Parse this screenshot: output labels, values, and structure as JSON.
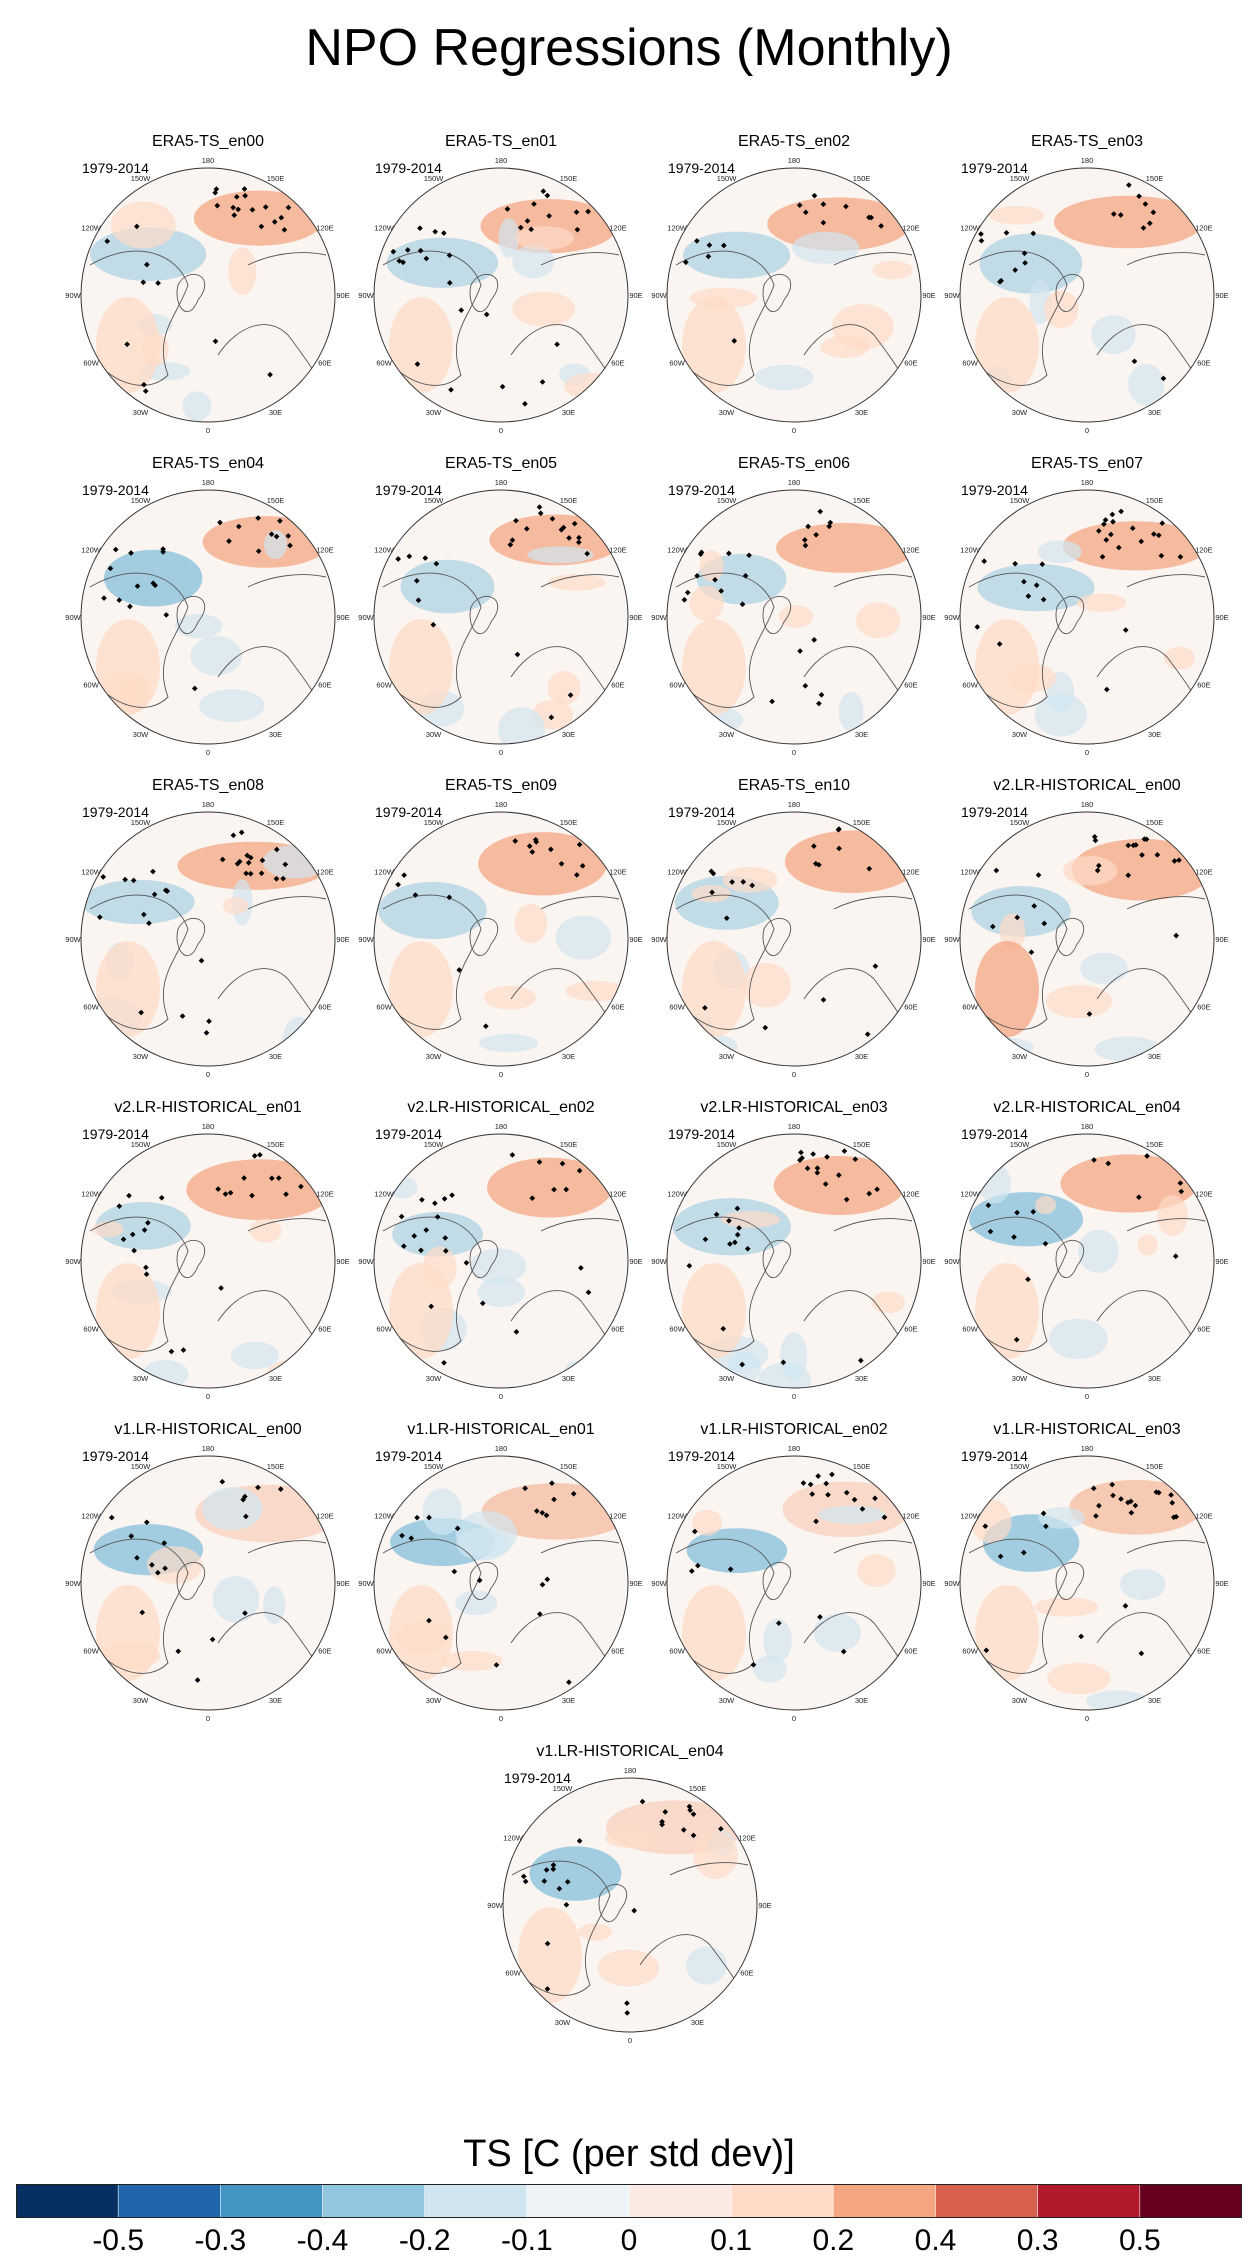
{
  "title": "NPO Regressions (Monthly)",
  "chart_data": {
    "type": "heatmap",
    "projection": "north polar stereographic",
    "variable": "TS",
    "period_label": "1979-2014",
    "panels": [
      {
        "name": "ERA5-TS_en00",
        "period": "1979-2014"
      },
      {
        "name": "ERA5-TS_en01",
        "period": "1979-2014"
      },
      {
        "name": "ERA5-TS_en02",
        "period": "1979-2014"
      },
      {
        "name": "ERA5-TS_en03",
        "period": "1979-2014"
      },
      {
        "name": "ERA5-TS_en04",
        "period": "1979-2014"
      },
      {
        "name": "ERA5-TS_en05",
        "period": "1979-2014"
      },
      {
        "name": "ERA5-TS_en06",
        "period": "1979-2014"
      },
      {
        "name": "ERA5-TS_en07",
        "period": "1979-2014"
      },
      {
        "name": "ERA5-TS_en08",
        "period": "1979-2014"
      },
      {
        "name": "ERA5-TS_en09",
        "period": "1979-2014"
      },
      {
        "name": "ERA5-TS_en10",
        "period": "1979-2014"
      },
      {
        "name": "v2.LR-HISTORICAL_en00",
        "period": "1979-2014"
      },
      {
        "name": "v2.LR-HISTORICAL_en01",
        "period": "1979-2014"
      },
      {
        "name": "v2.LR-HISTORICAL_en02",
        "period": "1979-2014"
      },
      {
        "name": "v2.LR-HISTORICAL_en03",
        "period": "1979-2014"
      },
      {
        "name": "v2.LR-HISTORICAL_en04",
        "period": "1979-2014"
      },
      {
        "name": "v1.LR-HISTORICAL_en00",
        "period": "1979-2014"
      },
      {
        "name": "v1.LR-HISTORICAL_en01",
        "period": "1979-2014"
      },
      {
        "name": "v1.LR-HISTORICAL_en02",
        "period": "1979-2014"
      },
      {
        "name": "v1.LR-HISTORICAL_en03",
        "period": "1979-2014"
      },
      {
        "name": "v1.LR-HISTORICAL_en04",
        "period": "1979-2014"
      }
    ],
    "longitude_labels": [
      "180",
      "150E",
      "120E",
      "90E",
      "60E",
      "30E",
      "0",
      "30W",
      "60W",
      "90W",
      "120W",
      "150W"
    ],
    "colorbar": {
      "title": "TS [C (per std dev)]",
      "colors": [
        "#053061",
        "#2166ac",
        "#4393c3",
        "#92c5de",
        "#d1e5f0",
        "#eef3f7",
        "#fbeae3",
        "#fddbc7",
        "#f4a582",
        "#d6604d",
        "#b2182b",
        "#67001f"
      ],
      "tick_labels": [
        "-0.5",
        "-0.3",
        "-0.4",
        "-0.2",
        "-0.1",
        "0",
        "0.1",
        "0.2",
        "0.4",
        "0.3",
        "0.5"
      ]
    },
    "colors": {
      "land_outline": "#555555",
      "warm_anomaly": "#f4a582",
      "cool_anomaly": "#92c5de",
      "stipple": "#000000"
    }
  }
}
